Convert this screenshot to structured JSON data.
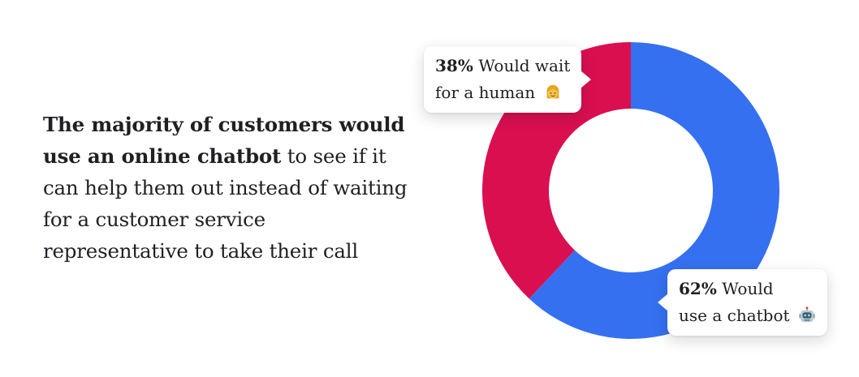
{
  "headline": {
    "bold_text": "The majority of customers would use an online chatbot",
    "rest_text": " to see if it can help them out instead of waiting for a customer service representative to take their call"
  },
  "chart_data": {
    "type": "pie",
    "title": "",
    "slices": [
      {
        "name": "Would use a chatbot",
        "value": 62,
        "color": "#3570f0",
        "label_pct": "62%",
        "label_line1": " Would",
        "label_line2": "use a chatbot",
        "icon": "robot-icon"
      },
      {
        "name": "Would wait for a human",
        "value": 38,
        "color": "#d90f50",
        "label_pct": "38%",
        "label_line1": " Would wait",
        "label_line2": "for a human",
        "icon": "person-icon"
      }
    ]
  }
}
